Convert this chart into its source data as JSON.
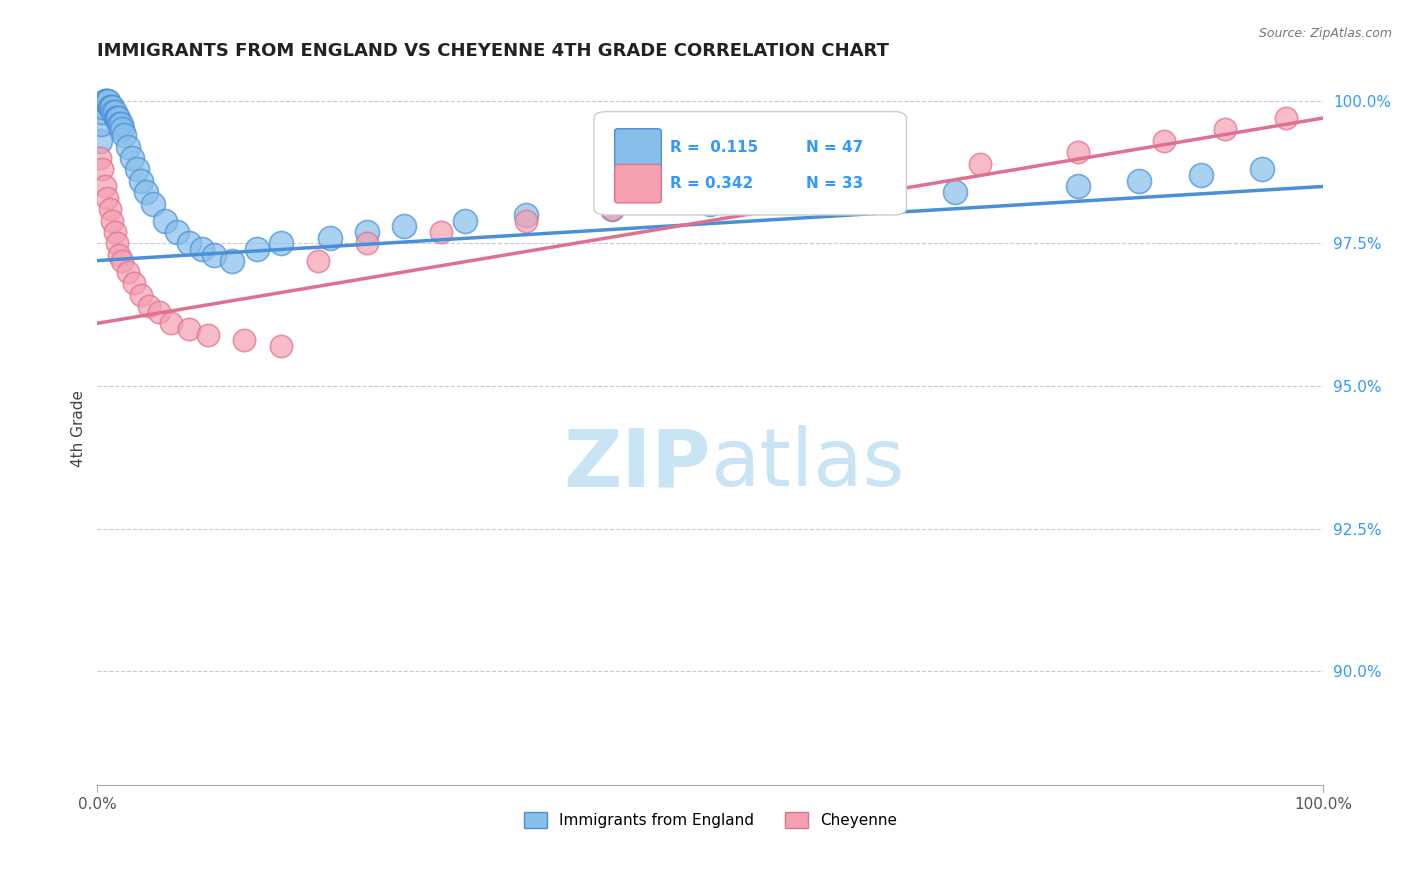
{
  "title": "IMMIGRANTS FROM ENGLAND VS CHEYENNE 4TH GRADE CORRELATION CHART",
  "source_text": "Source: ZipAtlas.com",
  "ylabel": "4th Grade",
  "xlim": [
    0.0,
    1.0
  ],
  "ylim": [
    0.88,
    1.005
  ],
  "yticks": [
    0.9,
    0.925,
    0.95,
    0.975,
    1.0
  ],
  "ytick_labels": [
    "90.0%",
    "92.5%",
    "95.0%",
    "97.5%",
    "100.0%"
  ],
  "xticks": [
    0.0,
    1.0
  ],
  "xtick_labels": [
    "0.0%",
    "100.0%"
  ],
  "legend_r_blue": "0.115",
  "legend_n_blue": "47",
  "legend_r_pink": "0.342",
  "legend_n_pink": "33",
  "blue_color": "#87BEEA",
  "pink_color": "#F4A0B0",
  "blue_line_color": "#4A90D9",
  "pink_line_color": "#E07090",
  "watermark_zip": "ZIP",
  "watermark_atlas": "atlas",
  "watermark_color": "#C8E4F5",
  "blue_scatter_x": [
    0.002,
    0.003,
    0.004,
    0.005,
    0.006,
    0.007,
    0.008,
    0.009,
    0.01,
    0.011,
    0.012,
    0.013,
    0.014,
    0.015,
    0.016,
    0.017,
    0.018,
    0.019,
    0.02,
    0.022,
    0.025,
    0.028,
    0.032,
    0.036,
    0.04,
    0.045,
    0.055,
    0.065,
    0.075,
    0.085,
    0.095,
    0.11,
    0.13,
    0.15,
    0.19,
    0.22,
    0.25,
    0.3,
    0.35,
    0.42,
    0.5,
    0.6,
    0.7,
    0.8,
    0.85,
    0.9,
    0.95
  ],
  "blue_scatter_y": [
    0.993,
    0.996,
    0.998,
    0.999,
    1.0,
    1.0,
    1.0,
    1.0,
    0.999,
    0.999,
    0.999,
    0.998,
    0.998,
    0.997,
    0.997,
    0.997,
    0.996,
    0.996,
    0.995,
    0.994,
    0.992,
    0.99,
    0.988,
    0.986,
    0.984,
    0.982,
    0.979,
    0.977,
    0.975,
    0.974,
    0.973,
    0.972,
    0.974,
    0.975,
    0.976,
    0.977,
    0.978,
    0.979,
    0.98,
    0.981,
    0.982,
    0.983,
    0.984,
    0.985,
    0.986,
    0.987,
    0.988
  ],
  "pink_scatter_x": [
    0.002,
    0.004,
    0.006,
    0.008,
    0.01,
    0.012,
    0.014,
    0.016,
    0.018,
    0.02,
    0.025,
    0.03,
    0.036,
    0.042,
    0.05,
    0.06,
    0.075,
    0.09,
    0.12,
    0.15,
    0.18,
    0.22,
    0.28,
    0.35,
    0.42,
    0.5,
    0.58,
    0.65,
    0.72,
    0.8,
    0.87,
    0.92,
    0.97
  ],
  "pink_scatter_y": [
    0.99,
    0.988,
    0.985,
    0.983,
    0.981,
    0.979,
    0.977,
    0.975,
    0.973,
    0.972,
    0.97,
    0.968,
    0.966,
    0.964,
    0.963,
    0.961,
    0.96,
    0.959,
    0.958,
    0.957,
    0.972,
    0.975,
    0.977,
    0.979,
    0.981,
    0.983,
    0.985,
    0.987,
    0.989,
    0.991,
    0.993,
    0.995,
    0.997
  ],
  "blue_line_y0": 0.972,
  "blue_line_y1": 0.985,
  "pink_line_y0": 0.961,
  "pink_line_y1": 0.997
}
